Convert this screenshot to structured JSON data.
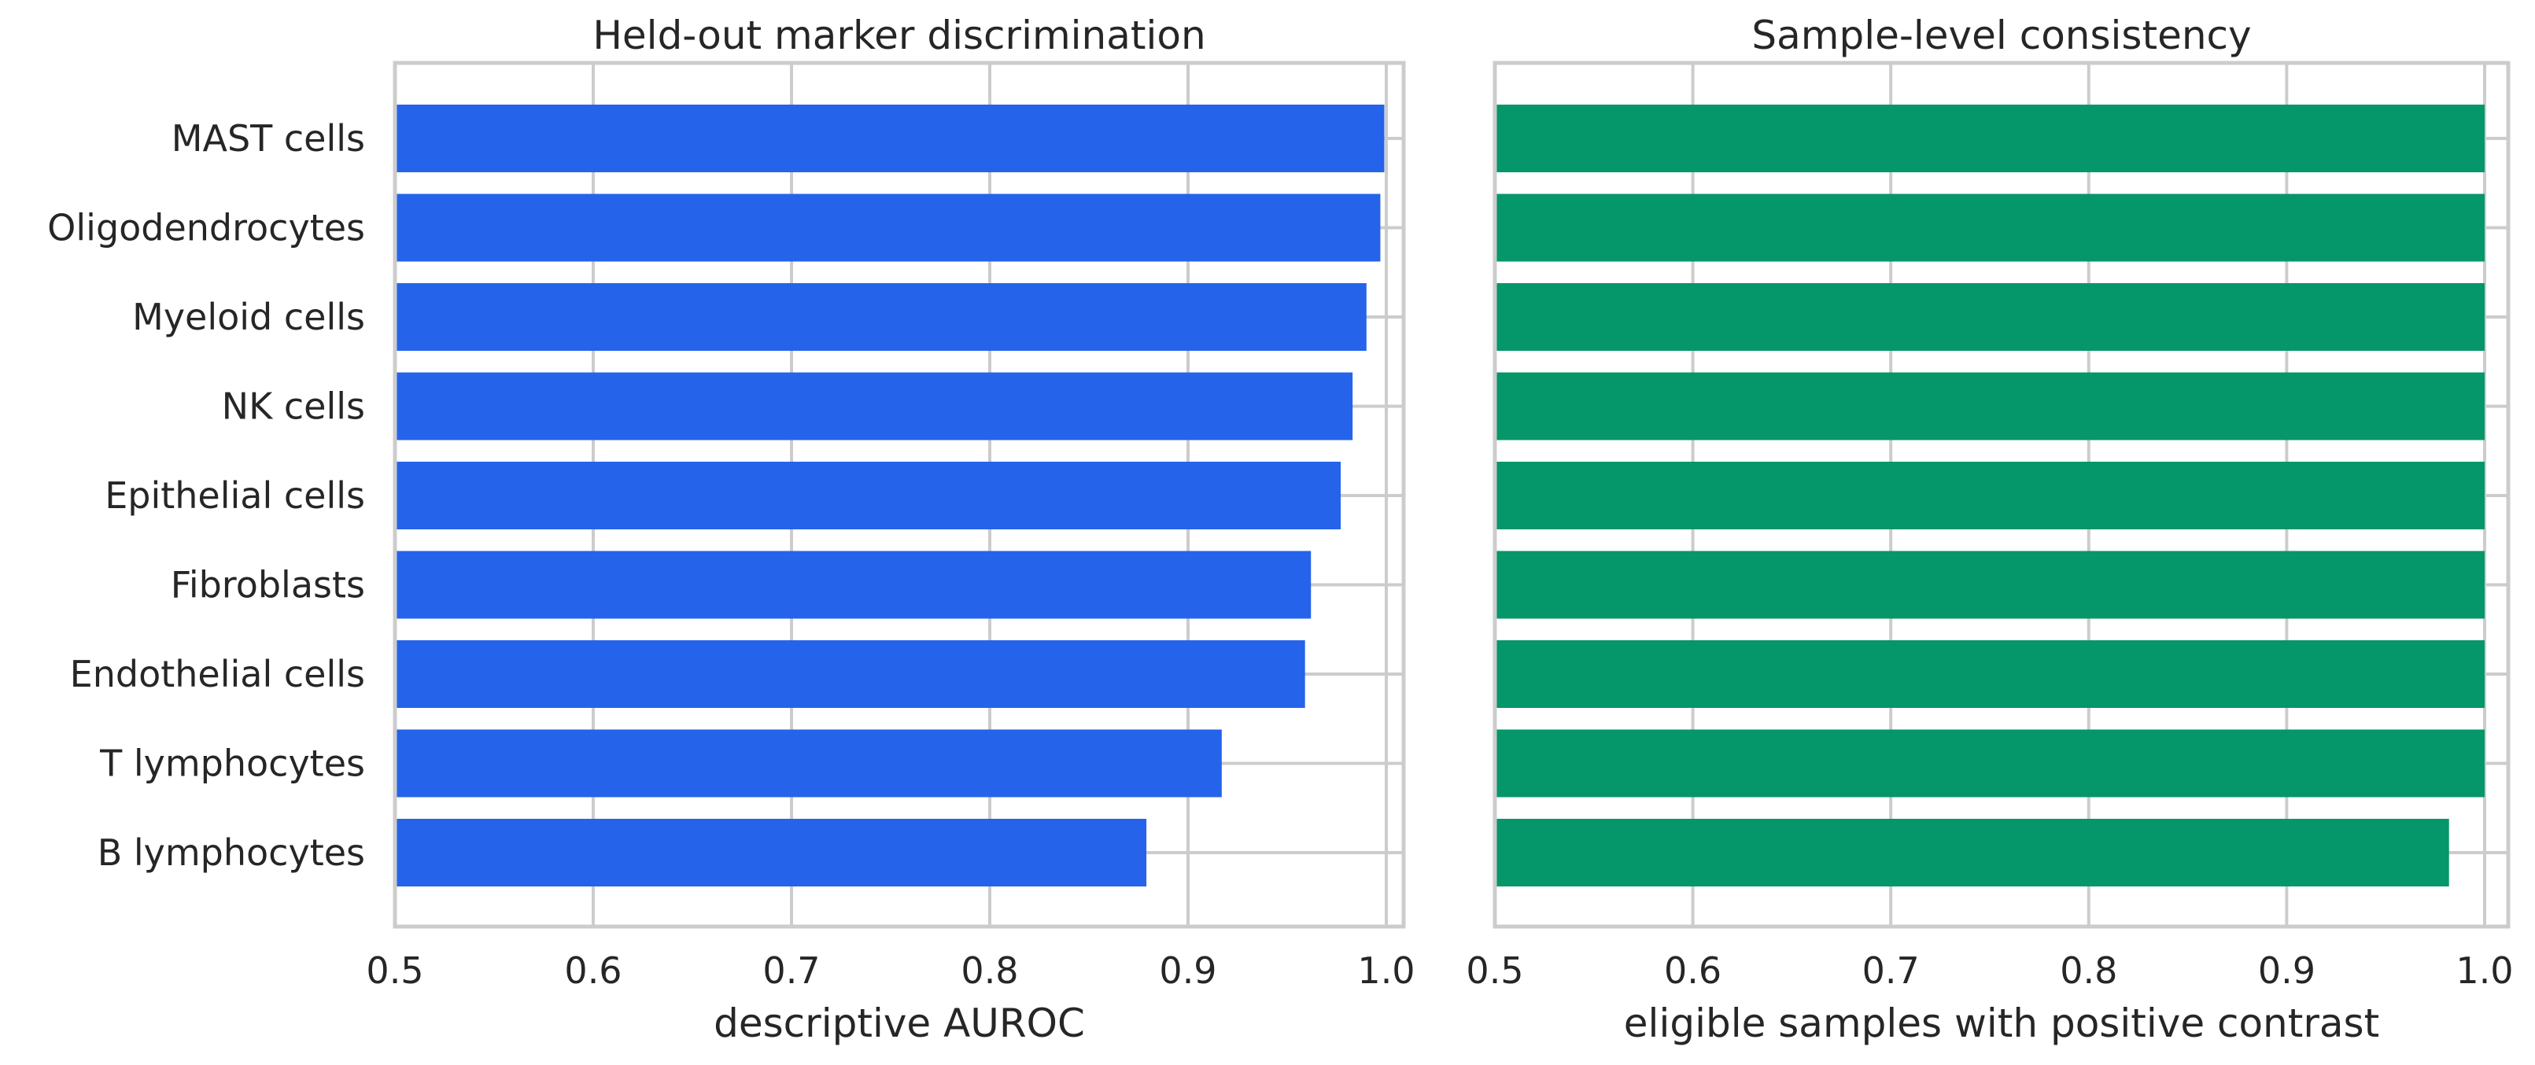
{
  "chart_data": [
    {
      "type": "bar",
      "orientation": "horizontal",
      "title": "Held-out marker discrimination",
      "xlabel": "descriptive AUROC",
      "ylabel": "",
      "xlim": [
        0.5,
        1.0
      ],
      "xticks": [
        "0.5",
        "0.6",
        "0.7",
        "0.8",
        "0.9",
        "1.0"
      ],
      "grid": true,
      "color": "#2563eb",
      "categories": [
        "MAST cells",
        "Oligodendrocytes",
        "Myeloid cells",
        "NK cells",
        "Epithelial cells",
        "Fibroblasts",
        "Endothelial cells",
        "T lymphocytes",
        "B lymphocytes"
      ],
      "values": [
        0.999,
        0.997,
        0.99,
        0.983,
        0.977,
        0.962,
        0.959,
        0.917,
        0.879
      ]
    },
    {
      "type": "bar",
      "orientation": "horizontal",
      "title": "Sample-level consistency",
      "xlabel": "eligible samples with positive contrast",
      "ylabel": "",
      "xlim": [
        0.5,
        1.0
      ],
      "xticks": [
        "0.5",
        "0.6",
        "0.7",
        "0.8",
        "0.9",
        "1.0"
      ],
      "grid": true,
      "color": "#059669",
      "categories": [
        "MAST cells",
        "Oligodendrocytes",
        "Myeloid cells",
        "NK cells",
        "Epithelial cells",
        "Fibroblasts",
        "Endothelial cells",
        "T lymphocytes",
        "B lymphocytes"
      ],
      "values": [
        1.0,
        1.0,
        1.0,
        1.0,
        1.0,
        1.0,
        1.0,
        1.0,
        0.982
      ]
    }
  ]
}
